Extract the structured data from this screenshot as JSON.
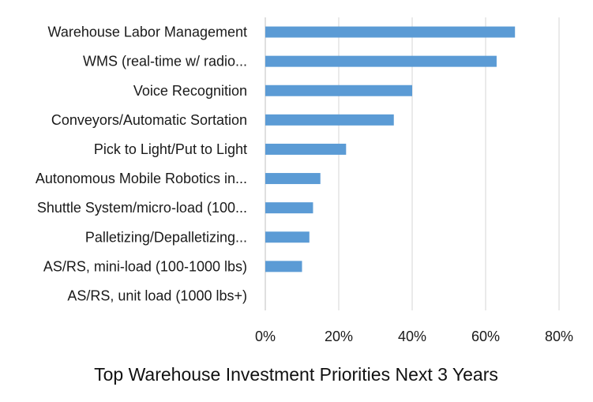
{
  "chart_data": {
    "type": "bar",
    "orientation": "horizontal",
    "title": "Top Warehouse Investment Priorities Next 3 Years",
    "xlabel": "",
    "ylabel": "",
    "categories": [
      "Warehouse Labor Management",
      "WMS (real-time w/ radio...",
      "Voice Recognition",
      "Conveyors/Automatic Sortation",
      "Pick to Light/Put to Light",
      "Autonomous Mobile Robotics in...",
      "Shuttle System/micro-load (100...",
      "Palletizing/Depalletizing...",
      "AS/RS, mini-load (100-1000 lbs)",
      "AS/RS, unit load (1000 lbs+)"
    ],
    "values": [
      68,
      63,
      40,
      35,
      22,
      15,
      13,
      12,
      10,
      0
    ],
    "xlim": [
      0,
      80
    ],
    "xticks": [
      0,
      20,
      40,
      60,
      80
    ],
    "xtick_labels": [
      "0%",
      "20%",
      "40%",
      "60%",
      "80%"
    ],
    "value_unit": "%",
    "grid": "vertical",
    "legend": "none",
    "bar_color": "#5b9bd5"
  }
}
